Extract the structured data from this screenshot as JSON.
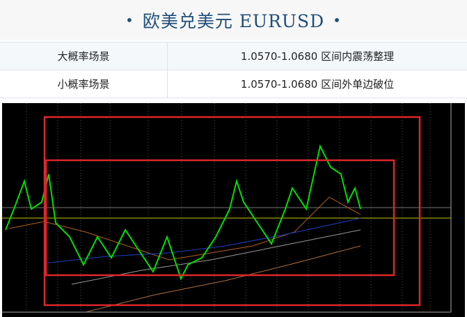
{
  "header": {
    "title": "欧美兑美元 EURUSD"
  },
  "table": {
    "rows": [
      [
        "大概率场景",
        "1.0570-1.0680 区间内震荡整理"
      ],
      [
        "小概率场景",
        "1.0570-1.0680 区间外单边破位"
      ]
    ]
  }
}
